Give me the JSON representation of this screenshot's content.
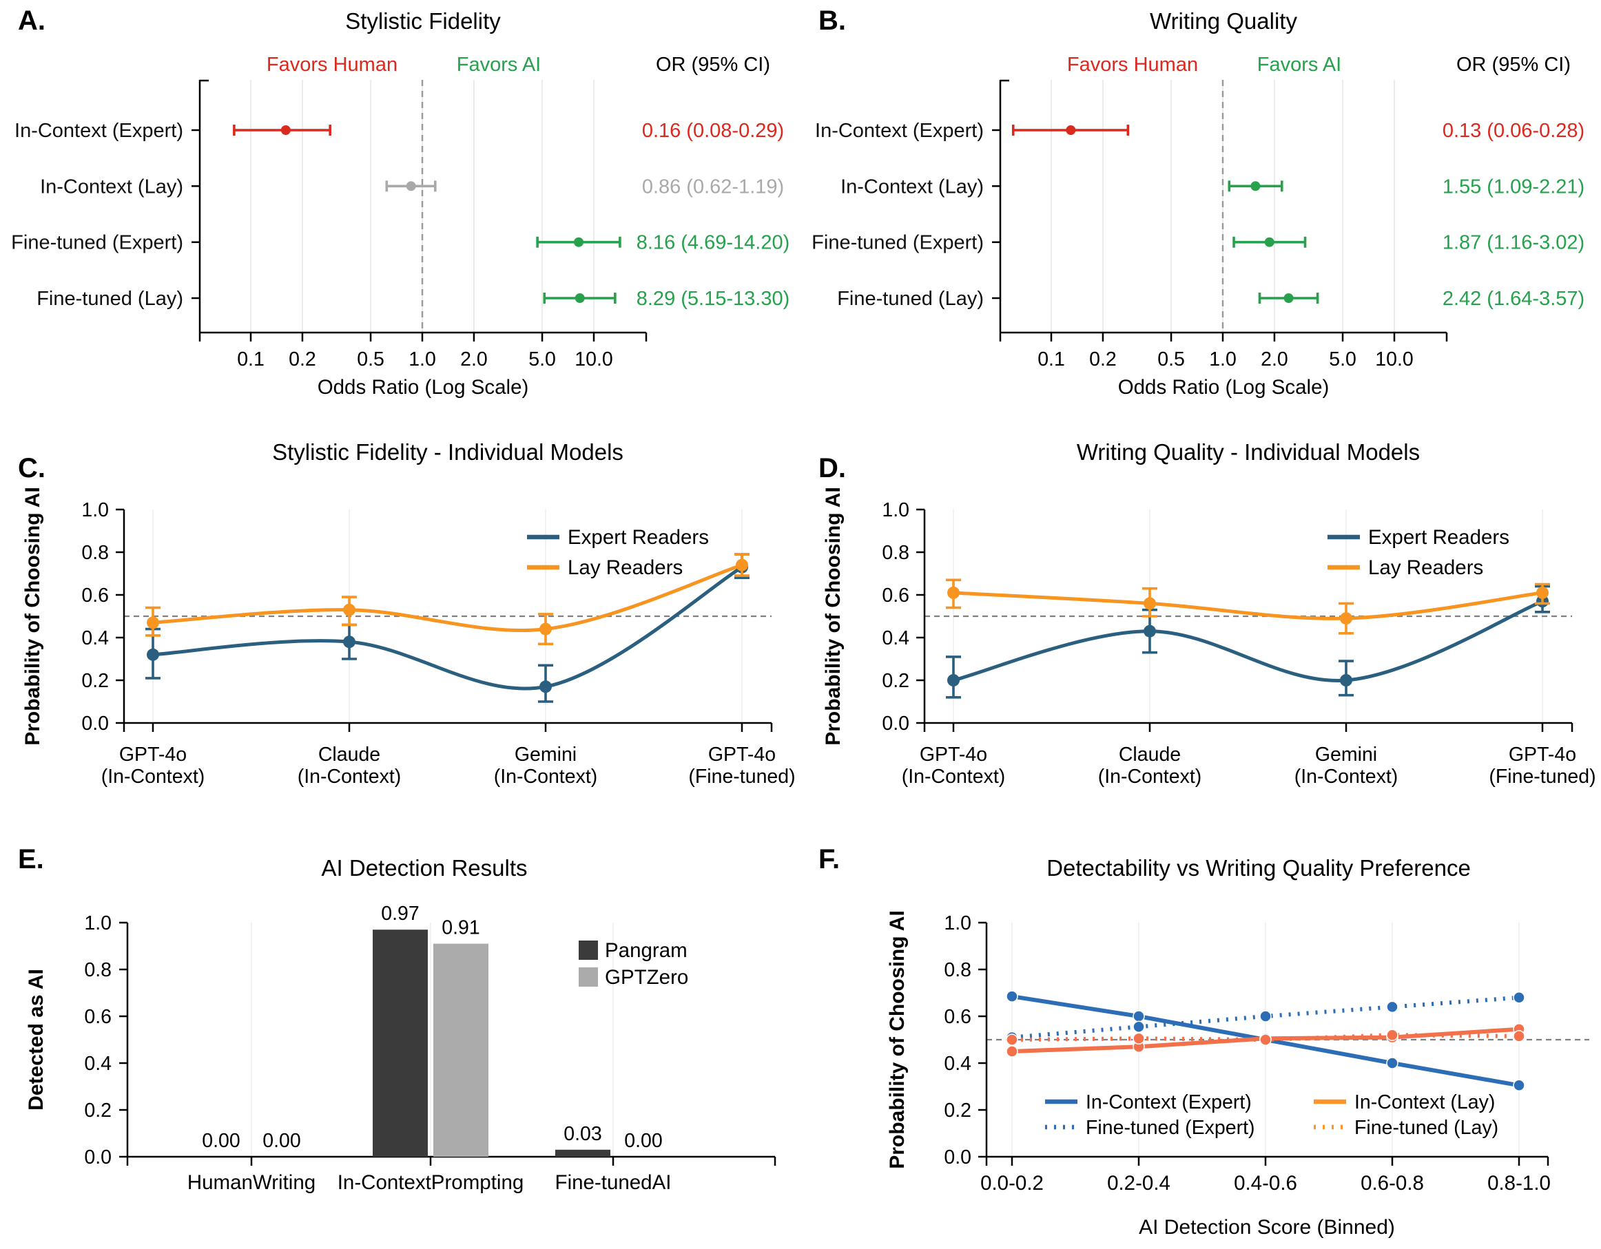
{
  "figure_bg": "#ffffff",
  "colors": {
    "red": "#DA291E",
    "green": "#27A14C",
    "gray": "#A9A9A9",
    "expert_navy": "#2A5F7F",
    "lay_orange": "#F89420",
    "f_blue": "#2C6DB6",
    "f_coral": "#F2714B",
    "f_lay_legend_orange": "#FF9428",
    "bar_dark": "#3B3B3B",
    "bar_light": "#ABABAB",
    "ref_dash": "#7F7F7F",
    "grid_light": "#F1F1F1",
    "grid_forest": "#EBEBEB"
  },
  "chart_data": [
    {
      "panel_letter": "A.",
      "type": "forest",
      "title": "Stylistic Fidelity",
      "favors_human_label": "Favors Human",
      "favors_ai_label": "Favors AI",
      "or_header": "OR (95% CI)",
      "xlabel": "Odds Ratio (Log Scale)",
      "x_ticks": [
        0.1,
        0.2,
        0.5,
        1.0,
        2.0,
        5.0,
        10.0
      ],
      "x_tick_labels": [
        "0.1",
        "0.2",
        "0.5",
        "1.0",
        "2.0",
        "5.0",
        "10.0"
      ],
      "ref_value": 1.0,
      "rows": [
        {
          "label": "In-Context (Expert)",
          "or": 0.16,
          "lo": 0.08,
          "hi": 0.29,
          "text": "0.16 (0.08-0.29)",
          "color_key": "red"
        },
        {
          "label": "In-Context (Lay)",
          "or": 0.86,
          "lo": 0.62,
          "hi": 1.19,
          "text": "0.86 (0.62-1.19)",
          "color_key": "gray"
        },
        {
          "label": "Fine-tuned (Expert)",
          "or": 8.16,
          "lo": 4.69,
          "hi": 14.2,
          "text": "8.16 (4.69-14.20)",
          "color_key": "green"
        },
        {
          "label": "Fine-tuned (Lay)",
          "or": 8.29,
          "lo": 5.15,
          "hi": 13.3,
          "text": "8.29 (5.15-13.30)",
          "color_key": "green"
        }
      ]
    },
    {
      "panel_letter": "B.",
      "type": "forest",
      "title": "Writing Quality",
      "favors_human_label": "Favors Human",
      "favors_ai_label": "Favors AI",
      "or_header": "OR (95% CI)",
      "xlabel": "Odds Ratio (Log Scale)",
      "x_ticks": [
        0.1,
        0.2,
        0.5,
        1.0,
        2.0,
        5.0,
        10.0
      ],
      "x_tick_labels": [
        "0.1",
        "0.2",
        "0.5",
        "1.0",
        "2.0",
        "5.0",
        "10.0"
      ],
      "ref_value": 1.0,
      "rows": [
        {
          "label": "In-Context (Expert)",
          "or": 0.13,
          "lo": 0.06,
          "hi": 0.28,
          "text": "0.13 (0.06-0.28)",
          "color_key": "red"
        },
        {
          "label": "In-Context (Lay)",
          "or": 1.55,
          "lo": 1.09,
          "hi": 2.21,
          "text": "1.55 (1.09-2.21)",
          "color_key": "green"
        },
        {
          "label": "Fine-tuned (Expert)",
          "or": 1.87,
          "lo": 1.16,
          "hi": 3.02,
          "text": "1.87 (1.16-3.02)",
          "color_key": "green"
        },
        {
          "label": "Fine-tuned (Lay)",
          "or": 2.42,
          "lo": 1.64,
          "hi": 3.57,
          "text": "2.42 (1.64-3.57)",
          "color_key": "green"
        }
      ]
    },
    {
      "panel_letter": "C.",
      "type": "lines",
      "title": "Stylistic Fidelity - Individual Models",
      "ylabel": "Probability of Choosing AI",
      "y_ticks": [
        "0.0",
        "0.2",
        "0.4",
        "0.6",
        "0.8",
        "1.0"
      ],
      "ylim": [
        0.0,
        1.0
      ],
      "ref_line": 0.5,
      "categories": [
        [
          "GPT-4o",
          "(In-Context)"
        ],
        [
          "Claude",
          "(In-Context)"
        ],
        [
          "Gemini",
          "(In-Context)"
        ],
        [
          "GPT-4o",
          "(Fine-tuned)"
        ]
      ],
      "series": [
        {
          "name": "Expert Readers",
          "color_key": "expert_navy",
          "values": [
            0.32,
            0.38,
            0.17,
            0.73
          ],
          "lo": [
            0.21,
            0.3,
            0.1,
            0.68
          ],
          "hi": [
            0.44,
            0.46,
            0.27,
            0.79
          ]
        },
        {
          "name": "Lay Readers",
          "color_key": "lay_orange",
          "values": [
            0.47,
            0.53,
            0.44,
            0.74
          ],
          "lo": [
            0.41,
            0.46,
            0.37,
            0.69
          ],
          "hi": [
            0.54,
            0.59,
            0.51,
            0.79
          ]
        }
      ]
    },
    {
      "panel_letter": "D.",
      "type": "lines",
      "title": "Writing Quality - Individual Models",
      "ylabel": "Probability of Choosing AI",
      "y_ticks": [
        "0.0",
        "0.2",
        "0.4",
        "0.6",
        "0.8",
        "1.0"
      ],
      "ylim": [
        0.0,
        1.0
      ],
      "ref_line": 0.5,
      "categories": [
        [
          "GPT-4o",
          "(In-Context)"
        ],
        [
          "Claude",
          "(In-Context)"
        ],
        [
          "Gemini",
          "(In-Context)"
        ],
        [
          "GPT-4o",
          "(Fine-tuned)"
        ]
      ],
      "series": [
        {
          "name": "Expert Readers",
          "color_key": "expert_navy",
          "values": [
            0.2,
            0.43,
            0.2,
            0.57
          ],
          "lo": [
            0.12,
            0.33,
            0.13,
            0.52
          ],
          "hi": [
            0.31,
            0.53,
            0.29,
            0.64
          ]
        },
        {
          "name": "Lay Readers",
          "color_key": "lay_orange",
          "values": [
            0.61,
            0.56,
            0.49,
            0.61
          ],
          "lo": [
            0.54,
            0.5,
            0.42,
            0.56
          ],
          "hi": [
            0.67,
            0.63,
            0.56,
            0.65
          ]
        }
      ]
    },
    {
      "panel_letter": "E.",
      "type": "bars",
      "title": "AI Detection Results",
      "ylabel": "Detected as AI",
      "y_ticks": [
        "0.0",
        "0.2",
        "0.4",
        "0.6",
        "0.8",
        "1.0"
      ],
      "ylim": [
        0.0,
        1.0
      ],
      "categories": [
        "HumanWriting",
        "In-ContextPrompting",
        "Fine-tunedAI"
      ],
      "series": [
        {
          "name": "Pangram",
          "color_key": "bar_dark",
          "values": [
            0.0,
            0.97,
            0.03
          ],
          "labels": [
            "0.00",
            "0.97",
            "0.03"
          ]
        },
        {
          "name": "GPTZero",
          "color_key": "bar_light",
          "values": [
            0.0,
            0.91,
            0.0
          ],
          "labels": [
            "0.00",
            "0.91",
            "0.00"
          ]
        }
      ]
    },
    {
      "panel_letter": "F.",
      "type": "multiline",
      "title": "Detectability vs Writing Quality Preference",
      "ylabel": "Probability of Choosing AI",
      "xlabel": "AI Detection Score (Binned)",
      "y_ticks": [
        "0.0",
        "0.2",
        "0.4",
        "0.6",
        "0.8",
        "1.0"
      ],
      "ylim": [
        0.0,
        1.0
      ],
      "ref_line": 0.5,
      "categories": [
        "0.0-0.2",
        "0.2-0.4",
        "0.4-0.6",
        "0.6-0.8",
        "0.8-1.0"
      ],
      "series": [
        {
          "name": "In-Context (Expert)",
          "color_key": "f_blue",
          "legend_color_key": "f_blue",
          "dashed": false,
          "values": [
            0.685,
            0.6,
            0.5,
            0.4,
            0.305
          ]
        },
        {
          "name": "In-Context (Lay)",
          "color_key": "f_coral",
          "legend_color_key": "f_lay_legend_orange",
          "dashed": false,
          "values": [
            0.45,
            0.47,
            0.505,
            0.51,
            0.545
          ]
        },
        {
          "name": "Fine-tuned (Expert)",
          "color_key": "f_blue",
          "legend_color_key": "f_blue",
          "dashed": true,
          "values": [
            0.51,
            0.555,
            0.6,
            0.64,
            0.68
          ]
        },
        {
          "name": "Fine-tuned (Lay)",
          "color_key": "f_coral",
          "legend_color_key": "f_lay_legend_orange",
          "dashed": true,
          "values": [
            0.5,
            0.505,
            0.5,
            0.52,
            0.515
          ]
        }
      ],
      "legend_order": [
        "In-Context (Expert)",
        "Fine-tuned (Expert)",
        "In-Context (Lay)",
        "Fine-tuned (Lay)"
      ]
    }
  ]
}
